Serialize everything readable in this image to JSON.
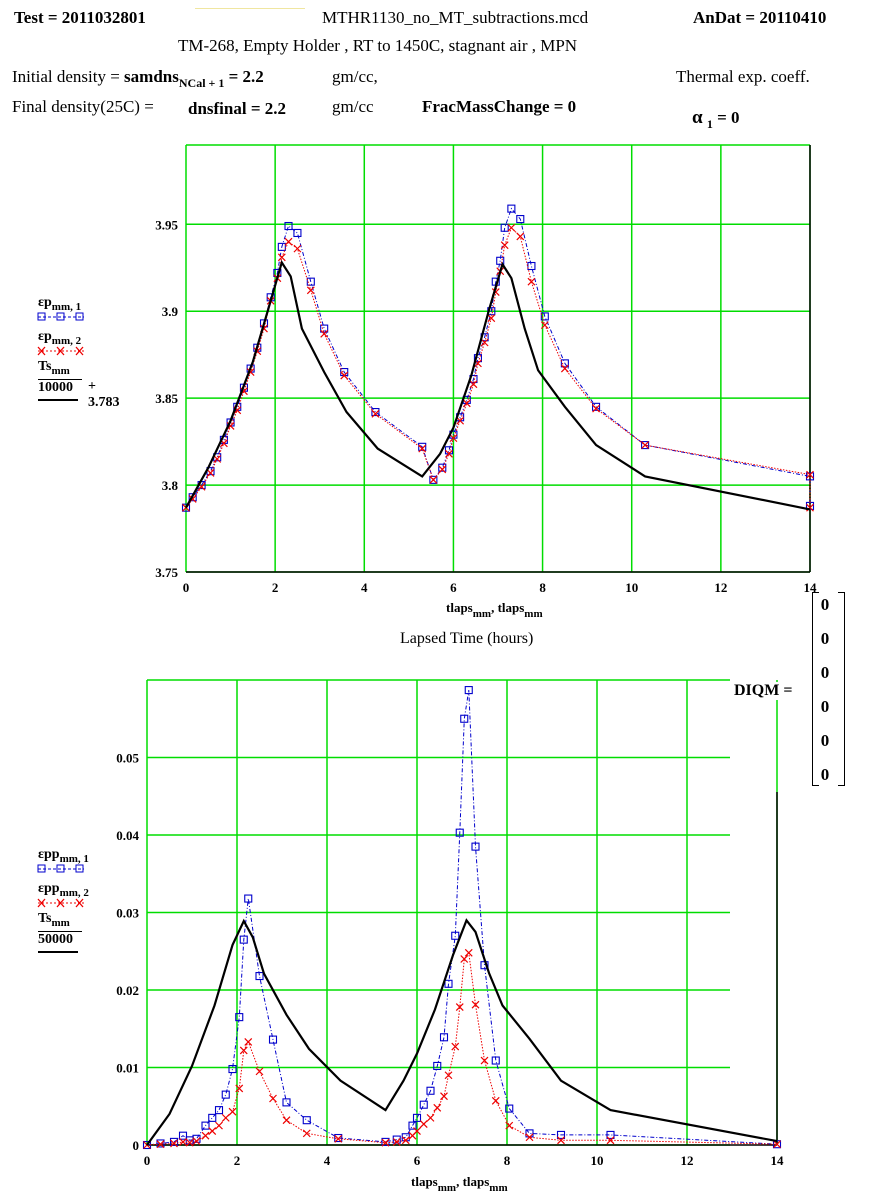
{
  "header": {
    "test_label": "Test = 2011032801",
    "filename": "MTHR1130_no_MT_subtractions.mcd",
    "andat_label": "AnDat = 20110410",
    "description": "TM-268, Empty Holder , RT to 1450C, stagnant air , MPN",
    "initial_density_prefix": "Initial density =",
    "initial_density_var": "samdns",
    "initial_density_sub": "NCal + 1",
    "initial_density_val": "= 2.2",
    "initial_density_unit": "gm/cc,",
    "thermal_exp": "Thermal exp. coeff.",
    "final_density_prefix": "Final density(25C) =",
    "final_density_expr": "dnsfinal = 2.2",
    "final_density_unit": "gm/cc",
    "frac_mass_change": "FracMassChange = 0",
    "alpha_sym": "α",
    "alpha_sub": "1",
    "alpha_val": "= 0"
  },
  "diqm": {
    "label": "DIQM =",
    "values": [
      "0",
      "0",
      "0",
      "0",
      "0",
      "0"
    ]
  },
  "legend1": {
    "s1_base": "εp",
    "s1_sub": "mm, 1",
    "s2_base": "εp",
    "s2_sub": "mm, 2",
    "s3_num": "Ts",
    "s3_num_sub": "mm",
    "s3_den": "10000",
    "s3_offset": "+ 3.783"
  },
  "legend2": {
    "s1_base": "εpp",
    "s1_sub": "mm, 1",
    "s2_base": "εpp",
    "s2_sub": "mm, 2",
    "s3_num": "Ts",
    "s3_num_sub": "mm",
    "s3_den": "50000"
  },
  "colors": {
    "grid": "#00dd00",
    "series1": "#0000cc",
    "series2": "#ee0000",
    "series3": "#000000"
  },
  "chart_data": [
    {
      "type": "line",
      "xlabel": "tlaps_mm, tlaps_mm",
      "xlabel_parts": [
        "tlaps",
        "mm",
        ", tlaps",
        "mm"
      ],
      "caption": "Lapsed Time (hours)",
      "xlim": [
        0,
        14
      ],
      "ylim": [
        3.75,
        3.9956
      ],
      "xticks": [
        "0",
        "2",
        "4",
        "6",
        "8",
        "10",
        "12",
        "14"
      ],
      "yticks": [
        "3.75",
        "3.8",
        "3.85",
        "3.9",
        "3.95"
      ],
      "series": [
        {
          "name": "εp mm,1",
          "x": [
            0,
            0.15,
            0.35,
            0.55,
            0.7,
            0.85,
            1.0,
            1.15,
            1.3,
            1.45,
            1.6,
            1.75,
            1.9,
            2.05,
            2.15,
            2.3,
            2.5,
            2.8,
            3.1,
            3.55,
            4.25,
            5.3,
            5.55,
            5.75,
            5.9,
            6.0,
            6.15,
            6.3,
            6.45,
            6.55,
            6.7,
            6.85,
            6.95,
            7.05,
            7.15,
            7.3,
            7.5,
            7.75,
            8.05,
            8.5,
            9.2,
            10.3,
            14
          ],
          "y": [
            3.787,
            3.793,
            3.8,
            3.808,
            3.816,
            3.826,
            3.836,
            3.845,
            3.856,
            3.867,
            3.879,
            3.893,
            3.908,
            3.922,
            3.937,
            3.949,
            3.945,
            3.917,
            3.89,
            3.865,
            3.842,
            3.822,
            3.803,
            3.81,
            3.82,
            3.829,
            3.839,
            3.849,
            3.861,
            3.873,
            3.885,
            3.9,
            3.917,
            3.929,
            3.948,
            3.959,
            3.953,
            3.926,
            3.897,
            3.87,
            3.845,
            3.823,
            3.805
          ],
          "x_tail": 14,
          "y_tail": 3.788
        },
        {
          "name": "εp mm,2",
          "x": [
            0,
            0.15,
            0.35,
            0.55,
            0.7,
            0.85,
            1.0,
            1.15,
            1.3,
            1.45,
            1.6,
            1.75,
            1.9,
            2.05,
            2.15,
            2.3,
            2.5,
            2.8,
            3.1,
            3.55,
            4.25,
            5.3,
            5.55,
            5.75,
            5.9,
            6.0,
            6.15,
            6.3,
            6.45,
            6.55,
            6.7,
            6.85,
            6.95,
            7.05,
            7.15,
            7.3,
            7.5,
            7.75,
            8.05,
            8.5,
            9.2,
            10.3,
            14
          ],
          "y": [
            3.787,
            3.792,
            3.799,
            3.807,
            3.815,
            3.824,
            3.834,
            3.843,
            3.854,
            3.865,
            3.877,
            3.89,
            3.906,
            3.919,
            3.931,
            3.94,
            3.936,
            3.912,
            3.887,
            3.863,
            3.841,
            3.821,
            3.803,
            3.809,
            3.818,
            3.827,
            3.837,
            3.847,
            3.858,
            3.87,
            3.882,
            3.896,
            3.911,
            3.923,
            3.938,
            3.948,
            3.943,
            3.917,
            3.892,
            3.867,
            3.844,
            3.823,
            3.806
          ],
          "x_tail": 14,
          "y_tail": 3.787
        },
        {
          "name": "Ts mm / 10000 + 3.783",
          "x": [
            0,
            0.5,
            1.0,
            1.5,
            1.9,
            2.15,
            2.35,
            2.6,
            3.1,
            3.6,
            4.3,
            5.3,
            5.7,
            6.0,
            6.4,
            6.8,
            7.1,
            7.3,
            7.6,
            7.9,
            8.5,
            9.2,
            10.3,
            14
          ],
          "y": [
            3.787,
            3.81,
            3.837,
            3.871,
            3.906,
            3.928,
            3.92,
            3.89,
            3.865,
            3.842,
            3.821,
            3.805,
            3.818,
            3.833,
            3.863,
            3.901,
            3.927,
            3.919,
            3.89,
            3.866,
            3.845,
            3.823,
            3.805,
            3.786
          ]
        }
      ]
    },
    {
      "type": "line",
      "xlabel": "tlaps_mm, tlaps_mm",
      "xlabel_parts": [
        "tlaps",
        "mm",
        ", tlaps",
        "mm"
      ],
      "xlim": [
        0,
        14
      ],
      "ylim": [
        0,
        0.06
      ],
      "xticks": [
        "0",
        "2",
        "4",
        "6",
        "8",
        "10",
        "12",
        "14"
      ],
      "yticks": [
        "0",
        "0.01",
        "0.02",
        "0.03",
        "0.04",
        "0.05"
      ],
      "series": [
        {
          "name": "εpp mm,1",
          "x": [
            0,
            0.3,
            0.6,
            0.8,
            0.95,
            1.1,
            1.3,
            1.45,
            1.6,
            1.75,
            1.9,
            2.05,
            2.15,
            2.25,
            2.5,
            2.8,
            3.1,
            3.55,
            4.25,
            5.3,
            5.55,
            5.75,
            5.9,
            6.0,
            6.15,
            6.3,
            6.45,
            6.6,
            6.7,
            6.85,
            6.95,
            7.05,
            7.15,
            7.3,
            7.5,
            7.75,
            8.05,
            8.5,
            9.2,
            10.3,
            14
          ],
          "y": [
            0,
            0.0002,
            0.0004,
            0.0012,
            0.0006,
            0.0008,
            0.0025,
            0.0035,
            0.0045,
            0.0065,
            0.0098,
            0.0165,
            0.0265,
            0.0318,
            0.0218,
            0.0136,
            0.0055,
            0.0032,
            0.0009,
            0.0004,
            0.0007,
            0.001,
            0.0025,
            0.0035,
            0.0052,
            0.007,
            0.0102,
            0.0139,
            0.0208,
            0.027,
            0.0403,
            0.055,
            0.0587,
            0.0385,
            0.0232,
            0.0109,
            0.0047,
            0.0015,
            0.0013,
            0.0013,
            0.0001
          ]
        },
        {
          "name": "εpp mm,2",
          "x": [
            0,
            0.3,
            0.6,
            0.8,
            0.95,
            1.1,
            1.3,
            1.45,
            1.6,
            1.75,
            1.9,
            2.05,
            2.15,
            2.25,
            2.5,
            2.8,
            3.1,
            3.55,
            4.25,
            5.3,
            5.55,
            5.75,
            5.9,
            6.0,
            6.15,
            6.3,
            6.45,
            6.6,
            6.7,
            6.85,
            6.95,
            7.05,
            7.15,
            7.3,
            7.5,
            7.75,
            8.05,
            8.5,
            9.2,
            10.3,
            14
          ],
          "y": [
            0,
            0.0001,
            0.0002,
            0.0004,
            0.0003,
            0.0005,
            0.0012,
            0.0018,
            0.0025,
            0.0035,
            0.0043,
            0.0073,
            0.0122,
            0.0133,
            0.0095,
            0.006,
            0.0032,
            0.0015,
            0.0008,
            0.0003,
            0.0004,
            0.0006,
            0.0012,
            0.0018,
            0.0027,
            0.0035,
            0.0048,
            0.0063,
            0.009,
            0.0127,
            0.0178,
            0.024,
            0.0248,
            0.0181,
            0.0109,
            0.0057,
            0.0025,
            0.001,
            0.0006,
            0.0006,
            0.0001
          ]
        },
        {
          "name": "Ts mm / 50000",
          "x": [
            0,
            0.5,
            1.0,
            1.5,
            1.9,
            2.15,
            2.35,
            2.6,
            3.1,
            3.6,
            4.3,
            5.3,
            5.7,
            6.0,
            6.4,
            6.8,
            7.1,
            7.3,
            7.6,
            7.9,
            8.5,
            9.2,
            10.3,
            14
          ],
          "y": [
            0,
            0.004,
            0.0102,
            0.018,
            0.0258,
            0.0289,
            0.0268,
            0.0221,
            0.0168,
            0.0124,
            0.0083,
            0.0045,
            0.0083,
            0.0118,
            0.0175,
            0.0245,
            0.029,
            0.0275,
            0.0222,
            0.018,
            0.0137,
            0.0083,
            0.0045,
            0.0005
          ]
        }
      ]
    }
  ]
}
